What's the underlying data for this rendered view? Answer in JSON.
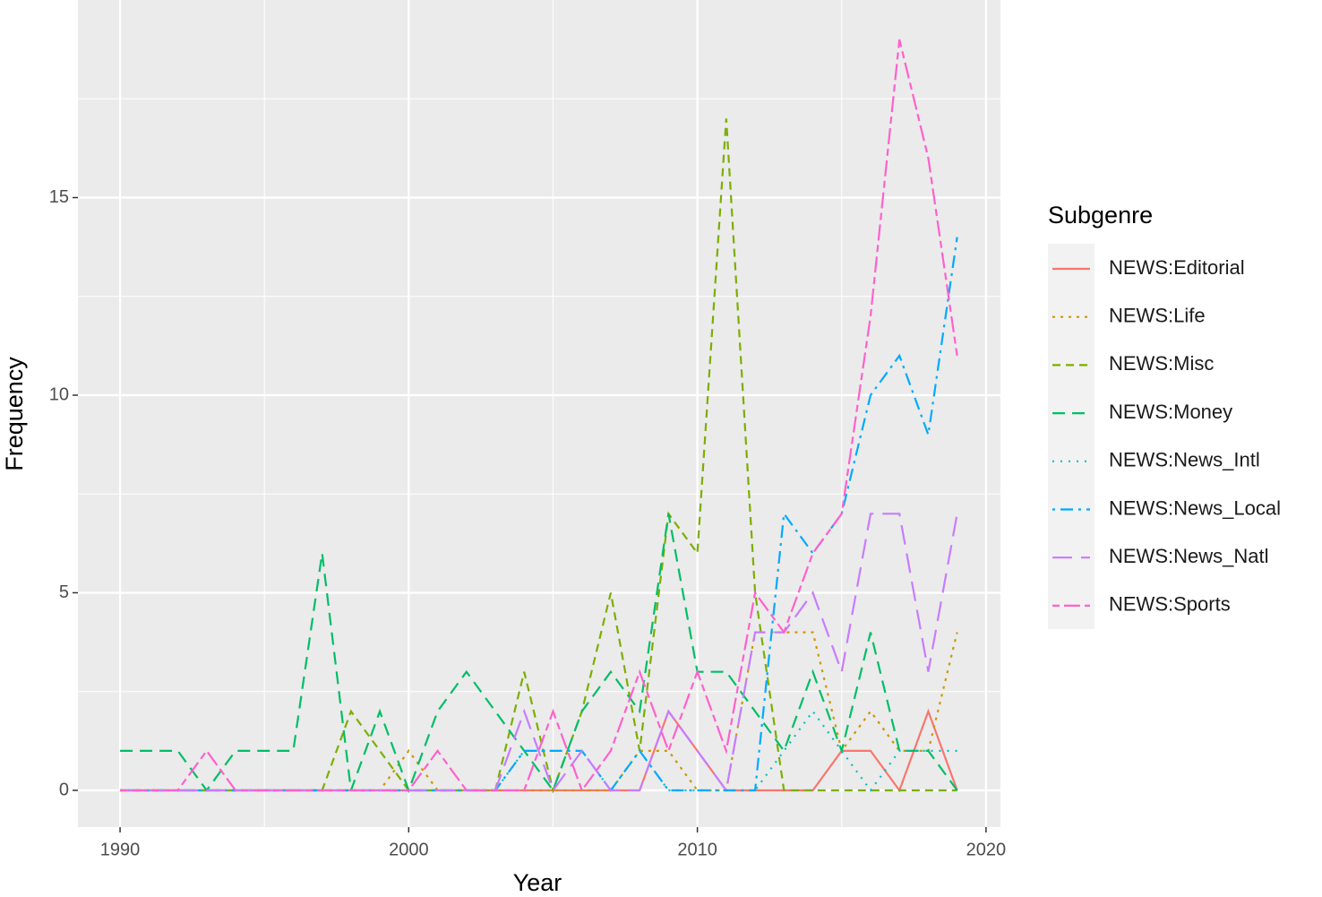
{
  "chart_data": {
    "type": "line",
    "x_label": "Year",
    "y_label": "Frequency",
    "legend_title": "Subgenre",
    "legend_position": "right",
    "grid": true,
    "x": [
      1990,
      1991,
      1992,
      1993,
      1994,
      1995,
      1996,
      1997,
      1998,
      1999,
      2000,
      2001,
      2002,
      2003,
      2004,
      2005,
      2006,
      2007,
      2008,
      2009,
      2010,
      2011,
      2012,
      2013,
      2014,
      2015,
      2016,
      2017,
      2018,
      2019
    ],
    "xlim": [
      1988.54,
      2020.5
    ],
    "xticks": [
      1990,
      2000,
      2010,
      2020
    ],
    "ylim": [
      -0.93,
      20
    ],
    "yticks": [
      0,
      5,
      10,
      15
    ],
    "series": [
      {
        "name": "NEWS:Editorial",
        "color": "#F8766D",
        "linetype": "solid",
        "values": [
          0,
          0,
          0,
          0,
          0,
          0,
          0,
          0,
          0,
          0,
          0,
          0,
          0,
          0,
          0,
          0,
          0,
          0,
          0,
          2,
          1,
          0,
          0,
          0,
          0,
          1,
          1,
          0,
          2,
          0
        ]
      },
      {
        "name": "NEWS:Life",
        "color": "#CD9600",
        "linetype": "dotted",
        "values": [
          0,
          0,
          0,
          0,
          0,
          0,
          0,
          0,
          0,
          0,
          1,
          0,
          0,
          0,
          0,
          0,
          0,
          0,
          1,
          1,
          0,
          0,
          4,
          4,
          4,
          1,
          2,
          1,
          1,
          4
        ]
      },
      {
        "name": "NEWS:Misc",
        "color": "#7CAE00",
        "linetype": "dashed",
        "values": [
          0,
          0,
          0,
          0,
          0,
          0,
          0,
          0,
          2,
          1,
          0,
          0,
          0,
          0,
          3,
          0,
          2,
          5,
          1,
          7,
          6,
          17,
          5,
          0,
          0,
          0,
          0,
          0,
          0,
          0
        ]
      },
      {
        "name": "NEWS:Money",
        "color": "#00BE67",
        "linetype": "longdash",
        "values": [
          1,
          1,
          1,
          0,
          1,
          1,
          1,
          6,
          0,
          2,
          0,
          2,
          3,
          2,
          1,
          0,
          2,
          3,
          2,
          7,
          3,
          3,
          2,
          1,
          3,
          1,
          4,
          1,
          1,
          0
        ]
      },
      {
        "name": "NEWS:News_Intl",
        "color": "#00BFC4",
        "linetype": "dotted2",
        "values": [
          0,
          0,
          0,
          0,
          0,
          0,
          0,
          0,
          0,
          0,
          0,
          0,
          0,
          0,
          1,
          1,
          1,
          0,
          1,
          0,
          0,
          0,
          0,
          1,
          2,
          1,
          0,
          1,
          1,
          1
        ]
      },
      {
        "name": "NEWS:News_Local",
        "color": "#00A9FF",
        "linetype": "dotdash",
        "values": [
          0,
          0,
          0,
          0,
          0,
          0,
          0,
          0,
          0,
          0,
          0,
          0,
          0,
          0,
          1,
          1,
          1,
          0,
          1,
          0,
          0,
          0,
          0,
          7,
          6,
          7,
          10,
          11,
          9,
          14
        ]
      },
      {
        "name": "NEWS:News_Natl",
        "color": "#C77CFF",
        "linetype": "longdash2",
        "values": [
          0,
          0,
          0,
          0,
          0,
          0,
          0,
          0,
          0,
          0,
          0,
          0,
          0,
          0,
          2,
          0,
          1,
          0,
          0,
          2,
          1,
          0,
          4,
          4,
          5,
          3,
          7,
          7,
          3,
          7
        ]
      },
      {
        "name": "NEWS:Sports",
        "color": "#FF61CC",
        "linetype": "twodash",
        "values": [
          0,
          0,
          0,
          1,
          0,
          0,
          0,
          0,
          0,
          0,
          0,
          1,
          0,
          0,
          0,
          2,
          0,
          1,
          3,
          1,
          3,
          1,
          5,
          4,
          6,
          7,
          12,
          19,
          16,
          11
        ]
      }
    ]
  }
}
